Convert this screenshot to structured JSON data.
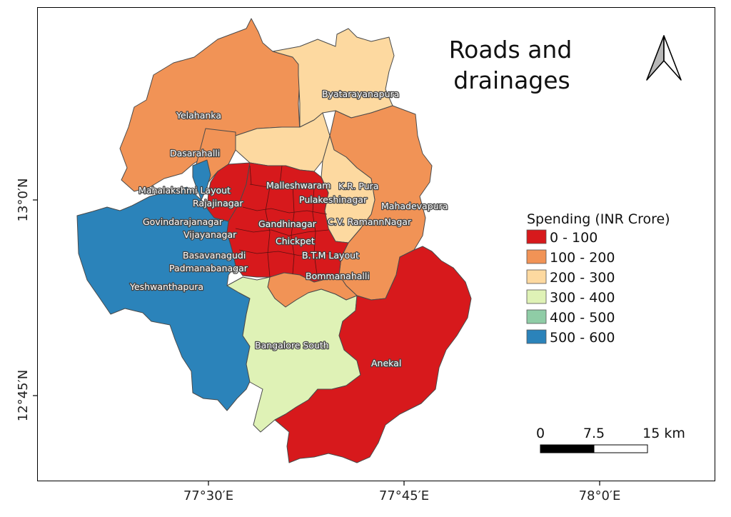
{
  "title": {
    "line1": "Roads and",
    "line2": "drainages"
  },
  "legend": {
    "title": "Spending (INR Crore)",
    "items": [
      {
        "label": "0 - 100",
        "color": "#d7191c"
      },
      {
        "label": "100 - 200",
        "color": "#f19356"
      },
      {
        "label": "200 - 300",
        "color": "#fdd9a0"
      },
      {
        "label": "300 - 400",
        "color": "#dff2b6"
      },
      {
        "label": "400 - 500",
        "color": "#8fcca6"
      },
      {
        "label": "500 - 600",
        "color": "#2b83ba"
      }
    ]
  },
  "scale_bar": {
    "labels": [
      "0",
      "7.5",
      "15 km"
    ]
  },
  "axes": {
    "x_ticks": [
      "77°30′E",
      "77°45′E",
      "78°0′E"
    ],
    "y_ticks": [
      "13°0′N",
      "12°45′N"
    ]
  },
  "north_arrow": "north-arrow-icon",
  "regions": [
    {
      "name": "Yelahanka",
      "spending_class": "100 - 200"
    },
    {
      "name": "Byatarayanapura",
      "spending_class": "200 - 300"
    },
    {
      "name": "Dasarahalli",
      "spending_class": "100 - 200"
    },
    {
      "name": "Mahalakshmi Layout",
      "spending_class": "500 - 600"
    },
    {
      "name": "Malleshwaram",
      "spending_class": "0 - 100"
    },
    {
      "name": "K.R. Pura",
      "spending_class": "200 - 300"
    },
    {
      "name": "Rajajinagar",
      "spending_class": "0 - 100"
    },
    {
      "name": "Pulakeshinagar",
      "spending_class": "0 - 100"
    },
    {
      "name": "Mahadevapura",
      "spending_class": "100 - 200"
    },
    {
      "name": "Govindarajanagar",
      "spending_class": "500 - 600"
    },
    {
      "name": "Gandhinagar",
      "spending_class": "0 - 100"
    },
    {
      "name": "C.V. RamannNagar",
      "spending_class": "200 - 300"
    },
    {
      "name": "Vijayanagar",
      "spending_class": "0 - 100"
    },
    {
      "name": "Chickpet",
      "spending_class": "0 - 100"
    },
    {
      "name": "Basavanagudi",
      "spending_class": "0 - 100"
    },
    {
      "name": "B.T.M Layout",
      "spending_class": "0 - 100"
    },
    {
      "name": "Padmanabanagar",
      "spending_class": "0 - 100"
    },
    {
      "name": "Bommanahalli",
      "spending_class": "100 - 200"
    },
    {
      "name": "Yeshwanthapura",
      "spending_class": "500 - 600"
    },
    {
      "name": "Bangalore South",
      "spending_class": "300 - 400"
    },
    {
      "name": "Anekal",
      "spending_class": "0 - 100"
    }
  ]
}
